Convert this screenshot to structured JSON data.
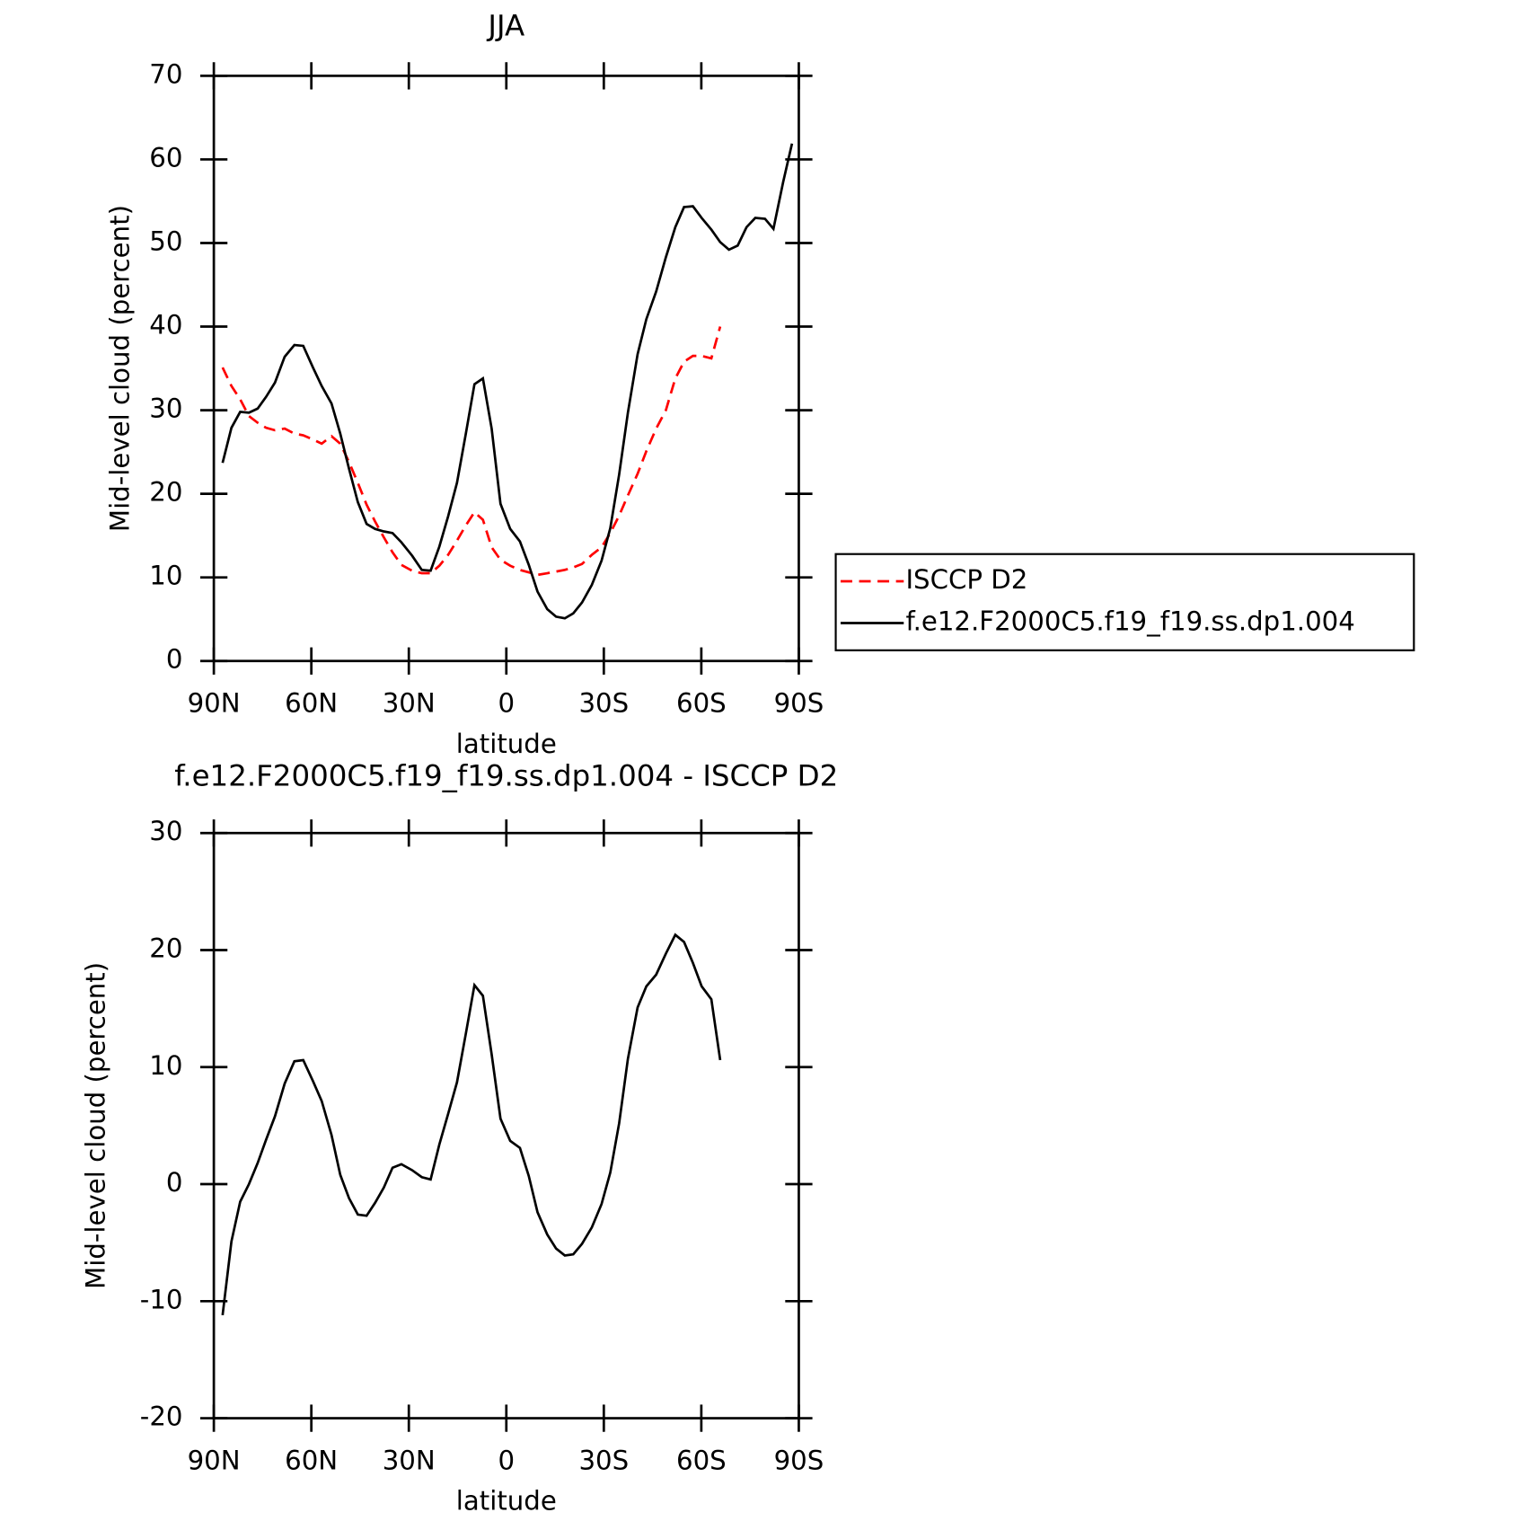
{
  "chart_data": [
    {
      "type": "line",
      "title": "JJA",
      "xlabel": "latitude",
      "ylabel": "Mid-level cloud (percent)",
      "xlim": [
        90,
        -90
      ],
      "xticks": [
        {
          "value": 90,
          "label": "90N"
        },
        {
          "value": 60,
          "label": "60N"
        },
        {
          "value": 30,
          "label": "30N"
        },
        0,
        {
          "value": -30,
          "label": "30S"
        },
        {
          "value": -60,
          "label": "60S"
        },
        {
          "value": -90,
          "label": "90S"
        }
      ],
      "ylim": [
        0,
        70
      ],
      "yticks": [
        0,
        10,
        20,
        30,
        40,
        50,
        60,
        70
      ],
      "x": [
        87.3,
        84.6,
        81.9,
        79.2,
        76.5,
        73.9,
        71.2,
        68.2,
        65.2,
        62.5,
        59.5,
        56.8,
        53.8,
        51.1,
        48.4,
        45.7,
        43.0,
        40.4,
        37.7,
        35.0,
        32.3,
        29.0,
        26.0,
        23.3,
        20.6,
        17.9,
        15.2,
        12.5,
        9.8,
        7.2,
        4.5,
        1.8,
        -1.2,
        -4.2,
        -6.9,
        -9.6,
        -12.6,
        -15.3,
        -18.0,
        -20.6,
        -23.3,
        -26.3,
        -29.3,
        -32.0,
        -34.7,
        -37.4,
        -40.4,
        -43.1,
        -46.1,
        -49.1,
        -52.0,
        -54.7,
        -57.4,
        -60.1,
        -63.1,
        -65.8,
        -68.5,
        -71.2,
        -73.9,
        -76.6,
        -79.6,
        -82.2,
        -85.2,
        -87.9
      ],
      "series": [
        {
          "name": "ISCCP D2",
          "color": "#ff0000",
          "dashed": true,
          "values": [
            35.1,
            32.9,
            31.3,
            29.3,
            28.5,
            27.9,
            27.6,
            27.8,
            27.2,
            27.0,
            26.5,
            26.0,
            26.9,
            26.0,
            23.8,
            21.3,
            18.7,
            16.7,
            14.8,
            13.0,
            11.5,
            10.8,
            10.5,
            10.5,
            11.4,
            12.7,
            14.4,
            16.2,
            17.8,
            16.9,
            13.6,
            12.1,
            11.4,
            10.9,
            10.6,
            10.3,
            10.5,
            10.7,
            10.9,
            11.2,
            11.6,
            12.7,
            13.6,
            15.3,
            17.4,
            19.8,
            22.4,
            25.1,
            27.8,
            30.0,
            33.8,
            35.8,
            36.5,
            36.5,
            36.2,
            40.0,
            null,
            null,
            null,
            null,
            null,
            null,
            null,
            null
          ]
        },
        {
          "name": "f.e12.F2000C5.f19_f19.ss.dp1.004",
          "color": "#000000",
          "dashed": false,
          "values": [
            23.7,
            27.9,
            29.8,
            29.7,
            30.2,
            31.6,
            33.3,
            36.4,
            37.8,
            37.7,
            35.1,
            32.9,
            30.8,
            27.2,
            23.0,
            19.0,
            16.4,
            15.8,
            15.5,
            15.3,
            14.2,
            12.6,
            10.9,
            10.8,
            13.7,
            17.3,
            21.3,
            27.1,
            33.1,
            33.8,
            27.8,
            18.8,
            15.8,
            14.3,
            11.5,
            8.3,
            6.2,
            5.3,
            5.1,
            5.7,
            7.0,
            9.1,
            12.0,
            15.9,
            22.3,
            29.7,
            36.7,
            40.9,
            44.2,
            48.3,
            51.9,
            54.3,
            54.4,
            53.0,
            51.6,
            50.1,
            49.2,
            49.7,
            51.9,
            53.0,
            52.9,
            51.7,
            57.3,
            61.9
          ]
        }
      ],
      "legend": "outside-right"
    },
    {
      "type": "line",
      "title": "f.e12.F2000C5.f19_f19.ss.dp1.004 - ISCCP D2",
      "xlabel": "latitude",
      "ylabel": "Mid-level cloud (percent)",
      "xlim": [
        90,
        -90
      ],
      "xticks": [
        {
          "value": 90,
          "label": "90N"
        },
        {
          "value": 60,
          "label": "60N"
        },
        {
          "value": 30,
          "label": "30N"
        },
        0,
        {
          "value": -30,
          "label": "30S"
        },
        {
          "value": -60,
          "label": "60S"
        },
        {
          "value": -90,
          "label": "90S"
        }
      ],
      "ylim": [
        -20,
        30
      ],
      "yticks": [
        -20,
        -10,
        0,
        10,
        20,
        30
      ],
      "x": [
        87.3,
        84.6,
        81.9,
        79.2,
        76.5,
        73.9,
        71.2,
        68.2,
        65.2,
        62.5,
        59.5,
        56.8,
        53.8,
        51.1,
        48.4,
        45.7,
        43.0,
        40.4,
        37.7,
        35.0,
        32.3,
        29.0,
        26.0,
        23.3,
        20.6,
        17.9,
        15.2,
        12.5,
        9.8,
        7.2,
        4.5,
        1.8,
        -1.2,
        -4.2,
        -6.9,
        -9.6,
        -12.6,
        -15.3,
        -18.0,
        -20.6,
        -23.3,
        -26.3,
        -29.3,
        -32.0,
        -34.7,
        -37.4,
        -40.4,
        -43.1,
        -46.1,
        -49.1,
        -52.0,
        -54.7,
        -57.4,
        -60.1,
        -63.1,
        -65.8,
        -68.5,
        -71.2,
        -73.9,
        -76.6,
        -79.6,
        -82.2,
        -85.2,
        -87.9
      ],
      "series": [
        {
          "color": "#000000",
          "dashed": false,
          "values": [
            -11.2,
            -4.9,
            -1.5,
            0.0,
            1.8,
            3.8,
            5.8,
            8.6,
            10.5,
            10.6,
            8.8,
            7.1,
            4.2,
            0.8,
            -1.2,
            -2.6,
            -2.7,
            -1.6,
            -0.3,
            1.4,
            1.7,
            1.2,
            0.6,
            0.4,
            3.4,
            6.0,
            8.7,
            12.8,
            17.0,
            16.1,
            11.1,
            5.6,
            3.7,
            3.1,
            0.7,
            -2.4,
            -4.3,
            -5.5,
            -6.1,
            -6.0,
            -5.1,
            -3.7,
            -1.7,
            1.0,
            5.2,
            10.7,
            15.1,
            16.9,
            17.9,
            19.7,
            21.3,
            20.7,
            18.9,
            16.9,
            15.8,
            10.6,
            null,
            null,
            null,
            null,
            null,
            null,
            null,
            null
          ]
        }
      ]
    }
  ]
}
